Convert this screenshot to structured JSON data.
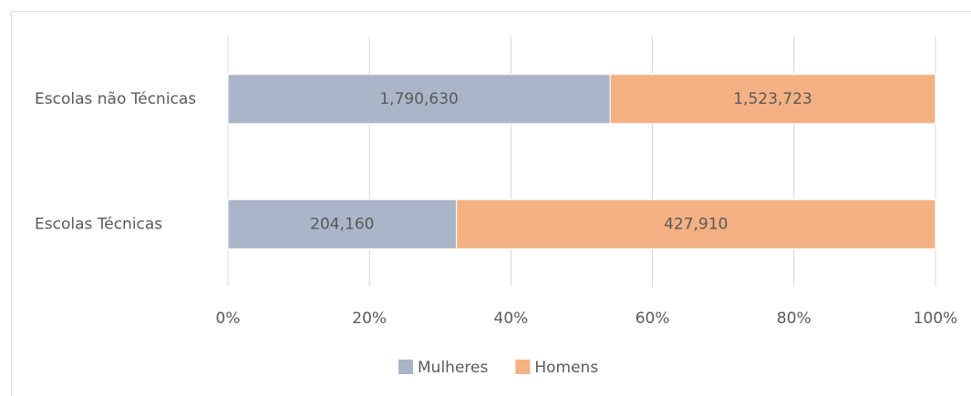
{
  "chart_data": {
    "type": "bar",
    "orientation": "horizontal",
    "stacking": "percent",
    "categories": [
      "Escolas não Técnicas",
      "Escolas Técnicas"
    ],
    "series": [
      {
        "name": "Mulheres",
        "color": "#aab5c8",
        "values": [
          1790630,
          204160
        ],
        "value_labels": [
          "1,790,630",
          "204,160"
        ]
      },
      {
        "name": "Homens",
        "color": "#f4b183",
        "values": [
          1523723,
          427910
        ],
        "value_labels": [
          "1,523,723",
          "427,910"
        ]
      }
    ],
    "xlim": [
      0,
      100
    ],
    "xticks": [
      {
        "value": 0,
        "label": "0%"
      },
      {
        "value": 20,
        "label": "20%"
      },
      {
        "value": 40,
        "label": "40%"
      },
      {
        "value": 60,
        "label": "60%"
      },
      {
        "value": 80,
        "label": "80%"
      },
      {
        "value": 100,
        "label": "100%"
      }
    ],
    "grid": true,
    "legend": "bottom"
  }
}
